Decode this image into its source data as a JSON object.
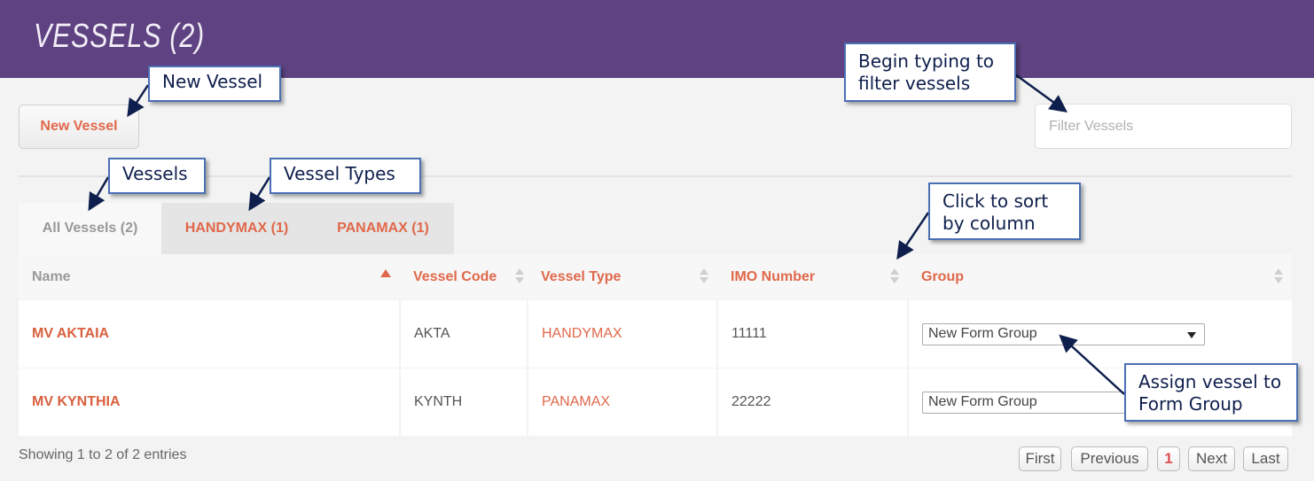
{
  "header": {
    "title": "VESSELS (2)"
  },
  "toolbar": {
    "new_vessel": "New Vessel",
    "filter_placeholder": "Filter Vessels"
  },
  "tabs": [
    {
      "label": "All Vessels (2)",
      "active": true
    },
    {
      "label": "HANDYMAX (1)"
    },
    {
      "label": "PANAMAX (1)"
    }
  ],
  "table": {
    "columns": [
      "Name",
      "Vessel Code",
      "Vessel Type",
      "IMO Number",
      "Group"
    ],
    "sorted_column": "Name",
    "sort_direction": "ascending",
    "rows": [
      {
        "name": "MV AKTAIA",
        "code": "AKTA",
        "type": "HANDYMAX",
        "imo": "11111",
        "group": "New Form Group"
      },
      {
        "name": "MV KYNTHIA",
        "code": "KYNTH",
        "type": "PANAMAX",
        "imo": "22222",
        "group": "New Form Group"
      }
    ]
  },
  "footer": {
    "info": "Showing 1 to 2 of 2 entries",
    "pagination": {
      "first": "First",
      "previous": "Previous",
      "current": "1",
      "next": "Next",
      "last": "Last"
    }
  },
  "callouts": {
    "new_vessel": "New Vessel",
    "vessels": "Vessels",
    "vessel_types": "Vessel Types",
    "filter": "Begin typing to filter vessels",
    "sort": "Click to sort by column",
    "assign": "Assign vessel to Form Group"
  },
  "colors": {
    "header": "#5e4282",
    "accent": "#e0684a",
    "callout_border": "#4a6fb5",
    "arrow": "#0f1f4d"
  }
}
